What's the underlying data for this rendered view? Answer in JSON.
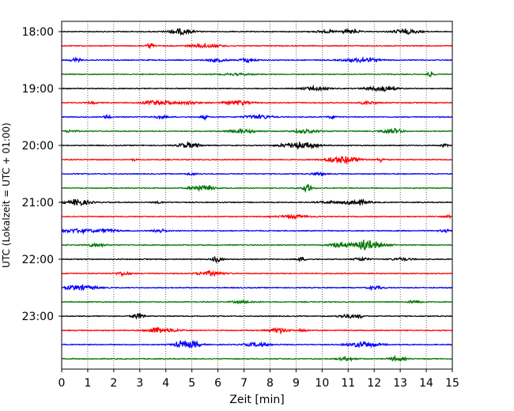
{
  "chart_data": {
    "type": "line",
    "title": "",
    "xlabel": "Zeit  [min]",
    "ylabel": "UTC (Lokalzeit = UTC + 01:00)",
    "xlim": [
      0,
      15
    ],
    "x_ticks": [
      "0",
      "1",
      "2",
      "3",
      "4",
      "5",
      "6",
      "7",
      "8",
      "9",
      "10",
      "11",
      "12",
      "13",
      "14",
      "15"
    ],
    "y_tick_labels": [
      "18:00",
      "19:00",
      "20:00",
      "21:00",
      "22:00",
      "23:00"
    ],
    "grid": "vertical dotted",
    "trace_interval_minutes": 15,
    "traces_start": "18:00",
    "trace_count": 24,
    "trace_colors": [
      "#000000",
      "#ff0000",
      "#0000ff",
      "#007700"
    ]
  }
}
